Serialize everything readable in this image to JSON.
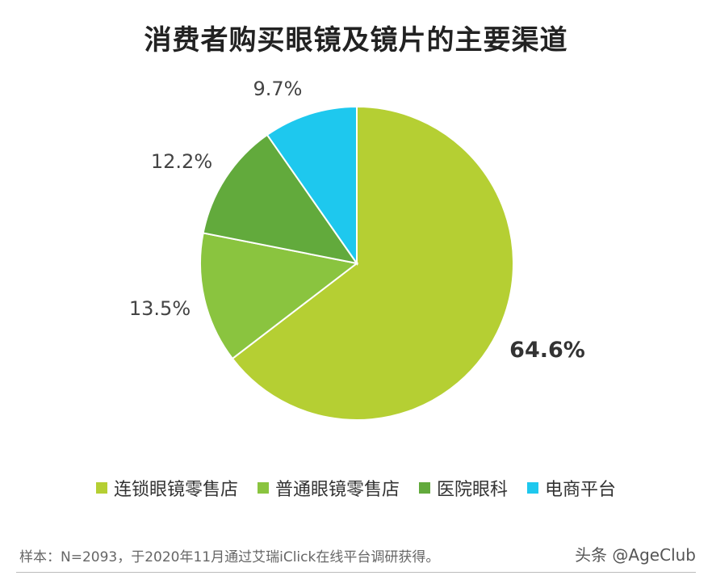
{
  "chart_data": {
    "type": "pie",
    "title": "消费者购买眼镜及镜片的主要渠道",
    "slices": [
      {
        "name": "连锁眼镜零售店",
        "value": 64.6,
        "label": "64.6%",
        "color": "#b5cf33"
      },
      {
        "name": "普通眼镜零售店",
        "value": 13.5,
        "label": "13.5%",
        "color": "#8ac43f"
      },
      {
        "name": "医院眼科",
        "value": 12.2,
        "label": "12.2%",
        "color": "#62aa3c"
      },
      {
        "name": "电商平台",
        "value": 9.7,
        "label": "9.7%",
        "color": "#1ec8ee"
      }
    ],
    "legend_placement": "bottom"
  },
  "footnote": "样本：N=2093，于2020年11月通过艾瑞iClick在线平台调研获得。",
  "watermark": "头条 @AgeClub"
}
